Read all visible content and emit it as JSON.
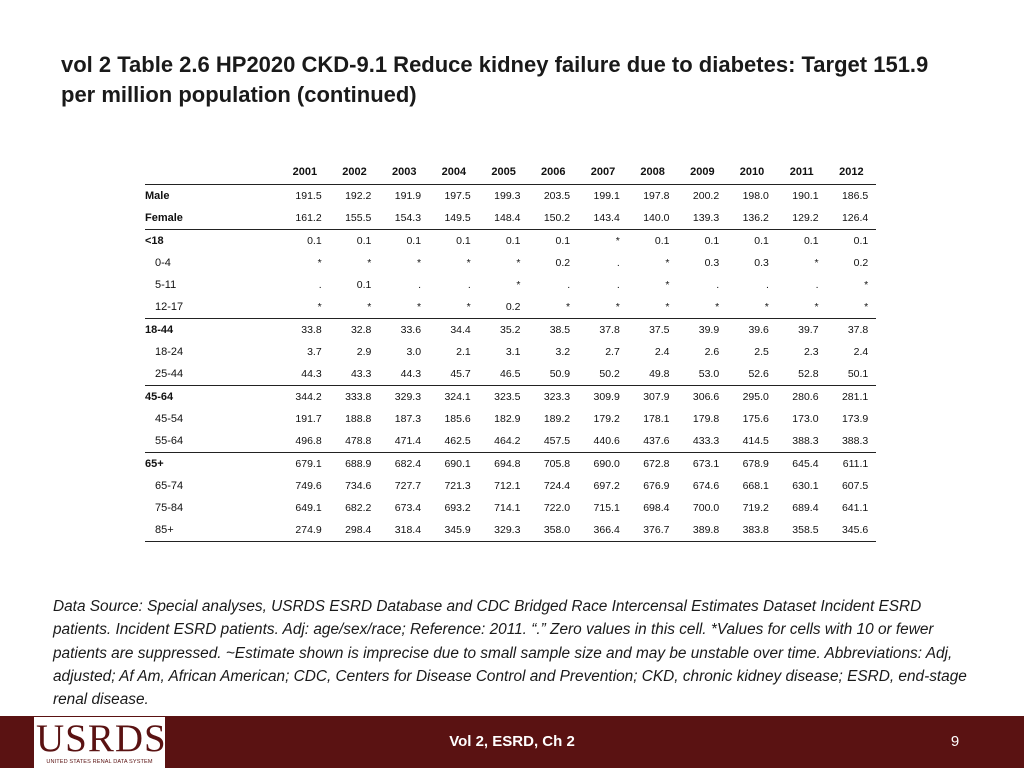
{
  "title": "vol 2 Table 2.6  HP2020 CKD-9.1 Reduce kidney failure due to diabetes: Target 151.9 per million population (continued)",
  "table": {
    "years": [
      "2001",
      "2002",
      "2003",
      "2004",
      "2005",
      "2006",
      "2007",
      "2008",
      "2009",
      "2010",
      "2011",
      "2012"
    ],
    "rows": [
      {
        "label": "Male",
        "bold": true,
        "indent": false,
        "rule_top": true,
        "values": [
          "191.5",
          "192.2",
          "191.9",
          "197.5",
          "199.3",
          "203.5",
          "199.1",
          "197.8",
          "200.2",
          "198.0",
          "190.1",
          "186.5"
        ]
      },
      {
        "label": "Female",
        "bold": true,
        "indent": false,
        "rule_top": false,
        "values": [
          "161.2",
          "155.5",
          "154.3",
          "149.5",
          "148.4",
          "150.2",
          "143.4",
          "140.0",
          "139.3",
          "136.2",
          "129.2",
          "126.4"
        ]
      },
      {
        "label": "<18",
        "bold": true,
        "indent": false,
        "rule_top": true,
        "values": [
          "0.1",
          "0.1",
          "0.1",
          "0.1",
          "0.1",
          "0.1",
          "*",
          "0.1",
          "0.1",
          "0.1",
          "0.1",
          "0.1"
        ]
      },
      {
        "label": "0-4",
        "bold": false,
        "indent": true,
        "rule_top": false,
        "values": [
          "*",
          "*",
          "*",
          "*",
          "*",
          "0.2",
          ".",
          "*",
          "0.3",
          "0.3",
          "*",
          "0.2"
        ]
      },
      {
        "label": "5-11",
        "bold": false,
        "indent": true,
        "rule_top": false,
        "values": [
          ".",
          "0.1",
          ".",
          ".",
          "*",
          ".",
          ".",
          "*",
          ".",
          ".",
          ".",
          "*"
        ]
      },
      {
        "label": "12-17",
        "bold": false,
        "indent": true,
        "rule_top": false,
        "values": [
          "*",
          "*",
          "*",
          "*",
          "0.2",
          "*",
          "*",
          "*",
          "*",
          "*",
          "*",
          "*"
        ]
      },
      {
        "label": "18-44",
        "bold": true,
        "indent": false,
        "rule_top": true,
        "values": [
          "33.8",
          "32.8",
          "33.6",
          "34.4",
          "35.2",
          "38.5",
          "37.8",
          "37.5",
          "39.9",
          "39.6",
          "39.7",
          "37.8"
        ]
      },
      {
        "label": "18-24",
        "bold": false,
        "indent": true,
        "rule_top": false,
        "values": [
          "3.7",
          "2.9",
          "3.0",
          "2.1",
          "3.1",
          "3.2",
          "2.7",
          "2.4",
          "2.6",
          "2.5",
          "2.3",
          "2.4"
        ]
      },
      {
        "label": "25-44",
        "bold": false,
        "indent": true,
        "rule_top": false,
        "values": [
          "44.3",
          "43.3",
          "44.3",
          "45.7",
          "46.5",
          "50.9",
          "50.2",
          "49.8",
          "53.0",
          "52.6",
          "52.8",
          "50.1"
        ]
      },
      {
        "label": "45-64",
        "bold": true,
        "indent": false,
        "rule_top": true,
        "values": [
          "344.2",
          "333.8",
          "329.3",
          "324.1",
          "323.5",
          "323.3",
          "309.9",
          "307.9",
          "306.6",
          "295.0",
          "280.6",
          "281.1"
        ]
      },
      {
        "label": "45-54",
        "bold": false,
        "indent": true,
        "rule_top": false,
        "values": [
          "191.7",
          "188.8",
          "187.3",
          "185.6",
          "182.9",
          "189.2",
          "179.2",
          "178.1",
          "179.8",
          "175.6",
          "173.0",
          "173.9"
        ]
      },
      {
        "label": "55-64",
        "bold": false,
        "indent": true,
        "rule_top": false,
        "values": [
          "496.8",
          "478.8",
          "471.4",
          "462.5",
          "464.2",
          "457.5",
          "440.6",
          "437.6",
          "433.3",
          "414.5",
          "388.3",
          "388.3"
        ]
      },
      {
        "label": "65+",
        "bold": true,
        "indent": false,
        "rule_top": true,
        "values": [
          "679.1",
          "688.9",
          "682.4",
          "690.1",
          "694.8",
          "705.8",
          "690.0",
          "672.8",
          "673.1",
          "678.9",
          "645.4",
          "611.1"
        ]
      },
      {
        "label": "65-74",
        "bold": false,
        "indent": true,
        "rule_top": false,
        "values": [
          "749.6",
          "734.6",
          "727.7",
          "721.3",
          "712.1",
          "724.4",
          "697.2",
          "676.9",
          "674.6",
          "668.1",
          "630.1",
          "607.5"
        ]
      },
      {
        "label": "75-84",
        "bold": false,
        "indent": true,
        "rule_top": false,
        "values": [
          "649.1",
          "682.2",
          "673.4",
          "693.2",
          "714.1",
          "722.0",
          "715.1",
          "698.4",
          "700.0",
          "719.2",
          "689.4",
          "641.1"
        ]
      },
      {
        "label": "85+",
        "bold": false,
        "indent": true,
        "rule_top": false,
        "values": [
          "274.9",
          "298.4",
          "318.4",
          "345.9",
          "329.3",
          "358.0",
          "366.4",
          "376.7",
          "389.8",
          "383.8",
          "358.5",
          "345.6"
        ]
      }
    ]
  },
  "footnote": "Data Source: Special analyses, USRDS ESRD Database and CDC Bridged Race Intercensal Estimates Dataset Incident ESRD patients. Incident ESRD patients. Adj: age/sex/race; Reference: 2011. “.” Zero values in this cell. *Values for cells with 10 or fewer patients are suppressed. ~Estimate shown is imprecise due to small sample size and may be unstable over time. Abbreviations: Adj, adjusted; Af Am, African American; CDC, Centers for Disease Control and Prevention; CKD, chronic kidney disease; ESRD, end-stage renal disease.",
  "footer": {
    "logo_text": "USRDS",
    "logo_subtext": "UNITED STATES RENAL DATA SYSTEM",
    "center_text": "Vol 2, ESRD, Ch 2",
    "page_number": "9"
  },
  "colors": {
    "footer_bar": "#5a1212",
    "logo": "#5a1212"
  }
}
